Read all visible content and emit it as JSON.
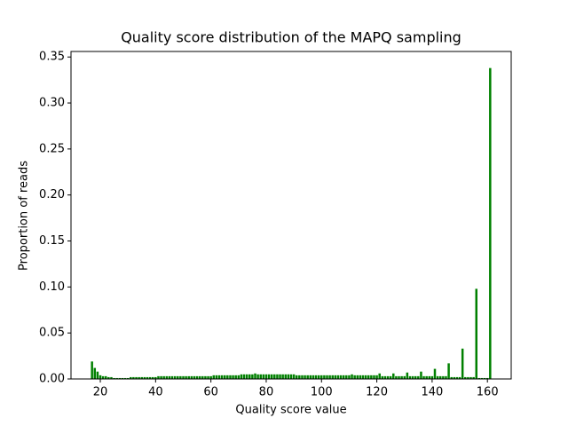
{
  "chart_data": {
    "type": "bar",
    "title": "Quality score distribution of the MAPQ sampling",
    "xlabel": "Quality score value",
    "ylabel": "Proportion of reads",
    "color": "#008000",
    "x": [
      17,
      18,
      19,
      20,
      21,
      22,
      23,
      24,
      25,
      26,
      27,
      28,
      29,
      30,
      31,
      32,
      33,
      34,
      35,
      36,
      37,
      38,
      39,
      40,
      41,
      42,
      43,
      44,
      45,
      46,
      47,
      48,
      49,
      50,
      51,
      52,
      53,
      54,
      55,
      56,
      57,
      58,
      59,
      60,
      61,
      62,
      63,
      64,
      65,
      66,
      67,
      68,
      69,
      70,
      71,
      72,
      73,
      74,
      75,
      76,
      77,
      78,
      79,
      80,
      81,
      82,
      83,
      84,
      85,
      86,
      87,
      88,
      89,
      90,
      91,
      92,
      93,
      94,
      95,
      96,
      97,
      98,
      99,
      100,
      101,
      102,
      103,
      104,
      105,
      106,
      107,
      108,
      109,
      110,
      111,
      112,
      113,
      114,
      115,
      116,
      117,
      118,
      119,
      120,
      121,
      122,
      123,
      124,
      125,
      126,
      127,
      128,
      129,
      130,
      131,
      132,
      133,
      134,
      135,
      136,
      137,
      138,
      139,
      140,
      141,
      142,
      143,
      144,
      145,
      146,
      147,
      148,
      149,
      150,
      151,
      152,
      153,
      154,
      155,
      156,
      157,
      158,
      159,
      160,
      161
    ],
    "values": [
      0.019,
      0.012,
      0.008,
      0.004,
      0.003,
      0.003,
      0.002,
      0.002,
      0.001,
      0.001,
      0.001,
      0.001,
      0.001,
      0.001,
      0.002,
      0.002,
      0.002,
      0.002,
      0.002,
      0.002,
      0.002,
      0.002,
      0.002,
      0.002,
      0.003,
      0.003,
      0.003,
      0.003,
      0.003,
      0.003,
      0.003,
      0.003,
      0.003,
      0.003,
      0.003,
      0.003,
      0.003,
      0.003,
      0.003,
      0.003,
      0.003,
      0.003,
      0.003,
      0.003,
      0.004,
      0.004,
      0.004,
      0.004,
      0.004,
      0.004,
      0.004,
      0.004,
      0.004,
      0.004,
      0.005,
      0.005,
      0.005,
      0.005,
      0.005,
      0.006,
      0.005,
      0.005,
      0.005,
      0.005,
      0.005,
      0.005,
      0.005,
      0.005,
      0.005,
      0.005,
      0.005,
      0.005,
      0.005,
      0.005,
      0.004,
      0.004,
      0.004,
      0.004,
      0.004,
      0.004,
      0.004,
      0.004,
      0.004,
      0.004,
      0.004,
      0.004,
      0.004,
      0.004,
      0.004,
      0.004,
      0.004,
      0.004,
      0.004,
      0.004,
      0.005,
      0.004,
      0.004,
      0.004,
      0.004,
      0.004,
      0.004,
      0.004,
      0.004,
      0.004,
      0.006,
      0.003,
      0.003,
      0.003,
      0.003,
      0.006,
      0.003,
      0.003,
      0.003,
      0.003,
      0.007,
      0.003,
      0.003,
      0.003,
      0.003,
      0.008,
      0.003,
      0.003,
      0.003,
      0.003,
      0.011,
      0.003,
      0.003,
      0.003,
      0.003,
      0.017,
      0.002,
      0.002,
      0.002,
      0.002,
      0.033,
      0.002,
      0.002,
      0.002,
      0.002,
      0.098,
      0.001,
      0.001,
      0.001,
      0.001,
      0.338
    ],
    "xlim": [
      9.4,
      168.6
    ],
    "xticks": [
      20,
      40,
      60,
      80,
      100,
      120,
      140,
      160
    ],
    "ylim": [
      0,
      0.356
    ],
    "yticks": [
      {
        "value": 0,
        "label": "0.00"
      },
      0.05,
      {
        "value": 0.1,
        "label": "0.10"
      },
      0.15,
      {
        "value": 0.2,
        "label": "0.20"
      },
      0.25,
      {
        "value": 0.3,
        "label": "0.30"
      },
      0.35
    ]
  }
}
